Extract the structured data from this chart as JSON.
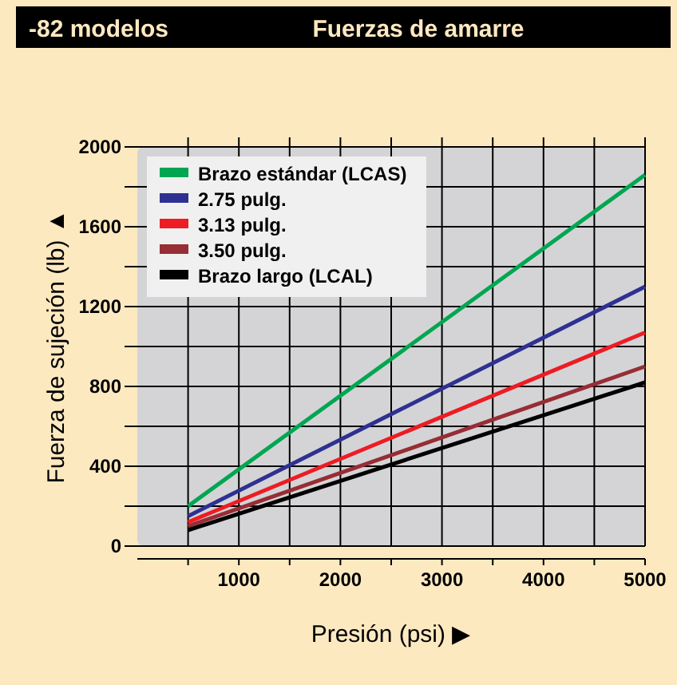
{
  "chart_data": {
    "type": "line",
    "title": "Fuerzas de amarre",
    "subtitle": "-82 modelos",
    "xlabel": "Presión (psi) ▶",
    "ylabel": "Fuerza de sujeción (lb) ▲",
    "x": [
      500,
      5000
    ],
    "series": [
      {
        "name": "Brazo estándar (LCAS)",
        "color": "#00a651",
        "values": [
          200,
          1860
        ]
      },
      {
        "name": "2.75 pulg.",
        "color": "#2e3192",
        "values": [
          150,
          1300
        ]
      },
      {
        "name": "3.13 pulg.",
        "color": "#ed1c24",
        "values": [
          120,
          1070
        ]
      },
      {
        "name": "3.50 pulg.",
        "color": "#972d35",
        "values": [
          100,
          900
        ]
      },
      {
        "name": "Brazo largo (LCAL)",
        "color": "#000000",
        "values": [
          80,
          820
        ]
      }
    ],
    "xlim": [
      0,
      5000
    ],
    "ylim": [
      0,
      2000
    ],
    "xticks": [
      {
        "value": 500,
        "label": null
      },
      1000,
      {
        "value": 1500,
        "label": null
      },
      2000,
      {
        "value": 2500,
        "label": null
      },
      3000,
      {
        "value": 3500,
        "label": null
      },
      4000,
      {
        "value": 4500,
        "label": null
      },
      5000
    ],
    "yticks": [
      0,
      {
        "value": 200,
        "label": null
      },
      400,
      {
        "value": 600,
        "label": null
      },
      800,
      {
        "value": 1000,
        "label": null
      },
      1200,
      {
        "value": 1400,
        "label": null
      },
      1600,
      {
        "value": 1800,
        "label": null
      },
      2000
    ],
    "grid": true,
    "legend": "top left",
    "marker": "none",
    "line_style": "solid"
  }
}
